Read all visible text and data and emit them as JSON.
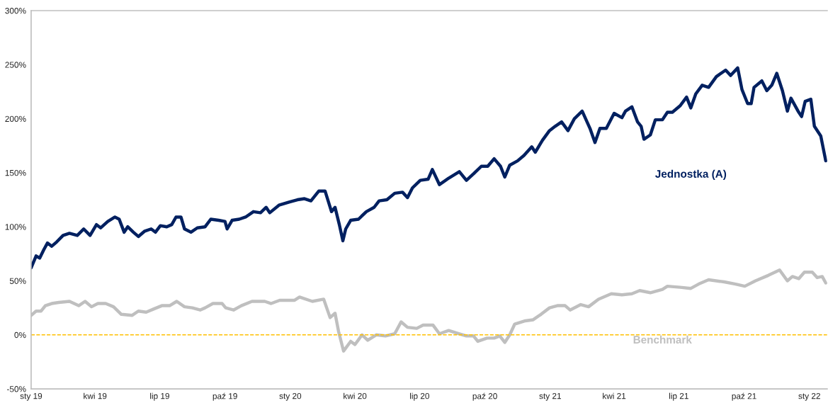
{
  "chart_data": {
    "type": "line",
    "series": [
      {
        "name": "Jednostka (A)",
        "color": "#002060",
        "x": [
          "2019-01-01",
          "2019-01-08",
          "2019-01-13",
          "2019-01-19",
          "2019-01-24",
          "2019-01-30",
          "2019-02-06",
          "2019-02-15",
          "2019-02-24",
          "2019-03-07",
          "2019-03-16",
          "2019-03-25",
          "2019-04-03",
          "2019-04-09",
          "2019-04-19",
          "2019-04-29",
          "2019-05-05",
          "2019-05-12",
          "2019-05-17",
          "2019-05-25",
          "2019-06-01",
          "2019-06-10",
          "2019-06-19",
          "2019-06-25",
          "2019-07-02",
          "2019-07-11",
          "2019-07-18",
          "2019-07-24",
          "2019-07-31",
          "2019-08-05",
          "2019-08-14",
          "2019-08-23",
          "2019-09-03",
          "2019-09-11",
          "2019-09-22",
          "2019-10-01",
          "2019-10-04",
          "2019-10-11",
          "2019-10-21",
          "2019-10-30",
          "2019-11-10",
          "2019-11-20",
          "2019-11-28",
          "2019-12-03",
          "2019-12-16",
          "2019-12-31",
          "2020-01-11",
          "2020-01-21",
          "2020-01-30",
          "2020-02-10",
          "2020-02-19",
          "2020-02-28",
          "2020-03-04",
          "2020-03-10",
          "2020-03-15",
          "2020-03-19",
          "2020-03-26",
          "2020-04-06",
          "2020-04-17",
          "2020-04-28",
          "2020-05-05",
          "2020-05-16",
          "2020-05-27",
          "2020-06-07",
          "2020-06-14",
          "2020-06-21",
          "2020-07-02",
          "2020-07-13",
          "2020-07-19",
          "2020-07-29",
          "2020-08-11",
          "2020-08-26",
          "2020-09-05",
          "2020-09-15",
          "2020-09-26",
          "2020-10-05",
          "2020-10-14",
          "2020-10-23",
          "2020-10-29",
          "2020-11-05",
          "2020-11-16",
          "2020-11-25",
          "2020-12-06",
          "2020-12-11",
          "2020-12-21",
          "2020-12-31",
          "2021-01-08",
          "2021-01-17",
          "2021-01-26",
          "2021-02-04",
          "2021-02-15",
          "2021-02-26",
          "2021-03-05",
          "2021-03-12",
          "2021-03-21",
          "2021-04-01",
          "2021-04-12",
          "2021-04-17",
          "2021-04-26",
          "2021-05-04",
          "2021-05-09",
          "2021-05-13",
          "2021-05-22",
          "2021-05-29",
          "2021-06-08",
          "2021-06-15",
          "2021-06-22",
          "2021-07-03",
          "2021-07-12",
          "2021-07-18",
          "2021-07-25",
          "2021-08-03",
          "2021-08-12",
          "2021-08-23",
          "2021-09-05",
          "2021-09-12",
          "2021-09-22",
          "2021-09-28",
          "2021-10-06",
          "2021-10-11",
          "2021-10-15",
          "2021-10-26",
          "2021-11-02",
          "2021-11-09",
          "2021-11-16",
          "2021-11-24",
          "2021-12-01",
          "2021-12-06",
          "2021-12-16",
          "2021-12-21",
          "2021-12-26",
          "2022-01-03",
          "2022-01-08",
          "2022-01-17",
          "2022-01-24"
        ],
        "values": [
          62,
          73,
          71,
          79,
          85,
          82,
          86,
          92,
          94,
          92,
          98,
          92,
          102,
          99,
          105,
          109,
          107,
          95,
          100,
          95,
          91,
          96,
          98,
          95,
          101,
          100,
          102,
          109,
          109,
          98,
          95,
          99,
          100,
          107,
          106,
          105,
          98,
          106,
          107,
          109,
          114,
          113,
          118,
          113,
          120,
          123,
          125,
          126,
          124,
          133,
          133,
          114,
          118,
          102,
          87,
          98,
          106,
          107,
          114,
          118,
          124,
          125,
          131,
          132,
          127,
          136,
          143,
          144,
          153,
          139,
          145,
          151,
          143,
          149,
          156,
          156,
          163,
          156,
          146,
          157,
          161,
          166,
          174,
          169,
          180,
          189,
          193,
          197,
          189,
          200,
          207,
          191,
          178,
          191,
          191,
          205,
          201,
          207,
          211,
          197,
          193,
          181,
          185,
          199,
          199,
          206,
          206,
          212,
          220,
          210,
          223,
          231,
          229,
          239,
          245,
          240,
          247,
          227,
          214,
          214,
          229,
          235,
          226,
          231,
          242,
          226,
          207,
          219,
          207,
          202,
          216,
          218,
          193,
          184,
          161
        ]
      },
      {
        "name": "Benchmark",
        "color": "#bfbfbf",
        "x": [
          "2019-01-01",
          "2019-01-08",
          "2019-01-15",
          "2019-01-21",
          "2019-01-30",
          "2019-02-09",
          "2019-02-24",
          "2019-03-09",
          "2019-03-18",
          "2019-03-27",
          "2019-04-05",
          "2019-04-16",
          "2019-04-27",
          "2019-05-08",
          "2019-05-23",
          "2019-06-01",
          "2019-06-12",
          "2019-06-23",
          "2019-07-04",
          "2019-07-15",
          "2019-07-25",
          "2019-08-05",
          "2019-08-16",
          "2019-08-27",
          "2019-09-03",
          "2019-09-14",
          "2019-09-27",
          "2019-10-02",
          "2019-10-13",
          "2019-10-24",
          "2019-11-08",
          "2019-11-26",
          "2019-12-05",
          "2019-12-17",
          "2020-01-07",
          "2020-01-14",
          "2020-02-01",
          "2020-02-17",
          "2020-02-26",
          "2020-03-04",
          "2020-03-09",
          "2020-03-16",
          "2020-03-26",
          "2020-04-01",
          "2020-04-11",
          "2020-04-19",
          "2020-05-01",
          "2020-05-14",
          "2020-05-27",
          "2020-06-05",
          "2020-06-14",
          "2020-06-27",
          "2020-07-06",
          "2020-07-20",
          "2020-07-29",
          "2020-08-11",
          "2020-08-26",
          "2020-09-05",
          "2020-09-15",
          "2020-09-21",
          "2020-10-04",
          "2020-10-14",
          "2020-10-22",
          "2020-10-29",
          "2020-11-05",
          "2020-11-12",
          "2020-11-27",
          "2020-12-08",
          "2020-12-19",
          "2020-12-31",
          "2021-01-11",
          "2021-01-22",
          "2021-01-29",
          "2021-02-13",
          "2021-02-24",
          "2021-03-10",
          "2021-03-28",
          "2021-04-12",
          "2021-04-26",
          "2021-05-07",
          "2021-05-22",
          "2021-06-08",
          "2021-06-15",
          "2021-07-03",
          "2021-07-18",
          "2021-07-29",
          "2021-08-12",
          "2021-09-03",
          "2021-09-19",
          "2021-10-02",
          "2021-10-17",
          "2021-11-04",
          "2021-11-20",
          "2021-12-01",
          "2021-12-08",
          "2021-12-17",
          "2021-12-25",
          "2022-01-05",
          "2022-01-12",
          "2022-01-19",
          "2022-01-24"
        ],
        "values": [
          18,
          22,
          22,
          27,
          29,
          30,
          31,
          27,
          31,
          26,
          29,
          29,
          26,
          19,
          18,
          22,
          21,
          24,
          27,
          27,
          31,
          26,
          25,
          23,
          25,
          29,
          29,
          25,
          23,
          27,
          31,
          31,
          29,
          32,
          32,
          35,
          31,
          33,
          16,
          20,
          3,
          -15,
          -6,
          -9,
          0,
          -5,
          0,
          -1,
          1,
          12,
          7,
          6,
          9,
          9,
          1,
          4,
          1,
          -1,
          -1,
          -6,
          -3,
          -3,
          -1,
          -7,
          0,
          10,
          13,
          14,
          19,
          25,
          27,
          27,
          23,
          28,
          26,
          33,
          38,
          37,
          38,
          41,
          39,
          42,
          45,
          44,
          43,
          47,
          51,
          49,
          47,
          45,
          50,
          55,
          60,
          50,
          54,
          52,
          58,
          58,
          53,
          54,
          48
        ]
      }
    ],
    "xlim": [
      "2019-01-01",
      "2022-01-26"
    ],
    "xticks": [
      {
        "value": "2019-01-01",
        "label": "sty 19"
      },
      {
        "value": "2019-04-01",
        "label": "kwi 19"
      },
      {
        "value": "2019-07-01",
        "label": "lip 19"
      },
      {
        "value": "2019-10-01",
        "label": "paź 19"
      },
      {
        "value": "2020-01-01",
        "label": "sty 20"
      },
      {
        "value": "2020-04-01",
        "label": "kwi 20"
      },
      {
        "value": "2020-07-01",
        "label": "lip 20"
      },
      {
        "value": "2020-10-01",
        "label": "paź 20"
      },
      {
        "value": "2021-01-01",
        "label": "sty 21"
      },
      {
        "value": "2021-04-01",
        "label": "kwi 21"
      },
      {
        "value": "2021-07-01",
        "label": "lip 21"
      },
      {
        "value": "2021-10-01",
        "label": "paź 21"
      },
      {
        "value": "2022-01-01",
        "label": "sty 22"
      }
    ],
    "ylim": [
      -50,
      300
    ],
    "yticks": [
      {
        "value": -50,
        "label": "-50%"
      },
      {
        "value": 0,
        "label": "0%"
      },
      {
        "value": 50,
        "label": "50%"
      },
      {
        "value": 100,
        "label": "100%"
      },
      {
        "value": 150,
        "label": "150%"
      },
      {
        "value": 200,
        "label": "200%"
      },
      {
        "value": 250,
        "label": "250%"
      },
      {
        "value": 300,
        "label": "300%"
      }
    ],
    "ref_lines": [
      {
        "axis": "y",
        "value": 0,
        "color": "#ffc000",
        "line_style": "dashed"
      }
    ],
    "legend": false,
    "grid": false,
    "marker": "none",
    "line_style": "solid"
  }
}
